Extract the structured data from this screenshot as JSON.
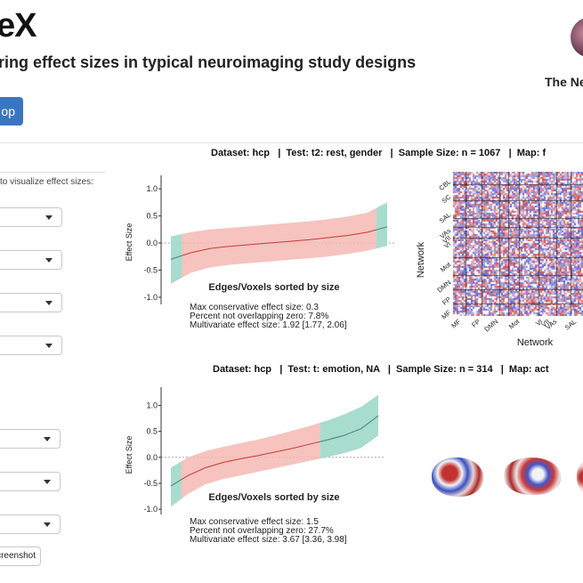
{
  "header": {
    "title": "eX",
    "subtitle": "ring effect sizes in typical neuroimaging study designs",
    "org_text": "The Ne",
    "button_label": "op"
  },
  "sidebar": {
    "instruction": "to visualize effect sizes:",
    "screenshot_label": "creenshot"
  },
  "panels": [
    {
      "info": {
        "dataset_label": "Dataset:",
        "dataset_value": "hcp",
        "test_label": "Test:",
        "test_value": "t2: rest, gender",
        "sample_label": "Sample Size:",
        "sample_value": "n = 1067",
        "map_label": "Map:",
        "map_value": "f"
      },
      "plot": {
        "x_label": "Edges/Voxels sorted by size",
        "y_label": "Effect Size"
      },
      "stats": [
        "Max conservative effect size: 0.3",
        "Percent not overlapping zero: 7.8%",
        "Multivariate effect size: 1.92 [1.77, 2.06]"
      ],
      "matrix": {
        "y_label": "Network",
        "x_label": "Network",
        "y_ticks": [
          "CBL",
          "SC",
          "SAL",
          "VAs",
          "VII",
          "VI",
          "Mot",
          "DMN",
          "FP",
          "MF"
        ],
        "x_ticks": [
          "MF",
          "FP",
          "DMN",
          "Mot",
          "VI",
          "VII",
          "VAs",
          "SAL"
        ]
      }
    },
    {
      "info": {
        "dataset_label": "Dataset:",
        "dataset_value": "hcp",
        "test_label": "Test:",
        "test_value": "t: emotion, NA",
        "sample_label": "Sample Size:",
        "sample_value": "n = 314",
        "map_label": "Map:",
        "map_value": "act"
      },
      "plot": {
        "x_label": "Edges/Voxels sorted by size",
        "y_label": "Effect Size"
      },
      "stats": [
        "Max conservative effect size: 1.5",
        "Percent not overlapping zero: 27.7%",
        "Multivariate effect size: 3.67 [3.36, 3.98]"
      ]
    }
  ],
  "plot_ticks": [
    "1.0",
    "0.5",
    "0.0",
    "-0.5",
    "-1.0"
  ],
  "chart_data": [
    {
      "type": "area",
      "x_label": "Edges/Voxels sorted by size",
      "y_label": "Effect Size",
      "ylim": [
        -1.1,
        1.2
      ],
      "y_ticks": [
        1.0,
        0.5,
        0.0,
        -0.5,
        -1.0
      ],
      "line": [
        -0.3,
        -0.18,
        -0.1,
        -0.06,
        -0.03,
        0.0,
        0.03,
        0.06,
        0.1,
        0.14,
        0.2,
        0.3
      ],
      "band_upper": [
        0.12,
        0.2,
        0.25,
        0.28,
        0.31,
        0.34,
        0.37,
        0.4,
        0.44,
        0.49,
        0.56,
        0.75
      ],
      "band_lower": [
        -0.75,
        -0.55,
        -0.45,
        -0.4,
        -0.37,
        -0.34,
        -0.31,
        -0.28,
        -0.25,
        -0.2,
        -0.14,
        -0.05
      ],
      "highlight_low_until": 0.05,
      "highlight_high_from": 0.95,
      "colors": {
        "band": "#f4b8b3",
        "highlight": "#a8dccf",
        "line": "#c23b3b",
        "highlight_line": "#3a9c8c"
      }
    },
    {
      "type": "area",
      "x_label": "Edges/Voxels sorted by size",
      "y_label": "Effect Size",
      "ylim": [
        -1.1,
        1.35
      ],
      "y_ticks": [
        1.0,
        0.5,
        0.0,
        -0.5,
        -1.0
      ],
      "line": [
        -0.55,
        -0.35,
        -0.2,
        -0.1,
        -0.03,
        0.03,
        0.1,
        0.17,
        0.25,
        0.33,
        0.42,
        0.55,
        0.8
      ],
      "band_upper": [
        -0.2,
        0.0,
        0.12,
        0.2,
        0.27,
        0.34,
        0.42,
        0.51,
        0.6,
        0.7,
        0.82,
        0.97,
        1.2
      ],
      "band_lower": [
        -0.95,
        -0.7,
        -0.52,
        -0.42,
        -0.35,
        -0.28,
        -0.21,
        -0.14,
        -0.07,
        0.0,
        0.08,
        0.18,
        0.42
      ],
      "highlight_low_until": 0.05,
      "highlight_high_from": 0.72,
      "colors": {
        "band": "#f4b8b3",
        "highlight": "#a8dccf",
        "line": "#c23b3b",
        "highlight_line": "#3a9c8c"
      }
    }
  ]
}
